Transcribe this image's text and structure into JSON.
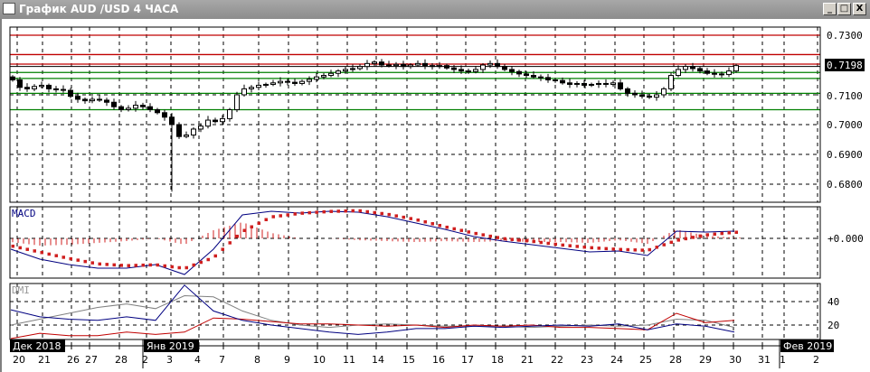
{
  "window": {
    "title": "График AUD /USD  4 ЧАСА",
    "controls": {
      "minimize": "_",
      "maximize": "□",
      "close": "X"
    }
  },
  "colors": {
    "support": "#008000",
    "resistance": "#c00000",
    "macd_line": "#000080",
    "signal_dots": "#d02020",
    "dmi_plus": "#000080",
    "dmi_minus": "#c00000",
    "adx": "#808080",
    "candle": "#000000"
  },
  "price_axis": {
    "labels": [
      "0.7300",
      "0.7100",
      "0.7000",
      "0.6900",
      "0.6800"
    ],
    "current_price": "0.7198"
  },
  "macd_panel": {
    "label": "MACD",
    "zero_label": "+0.000"
  },
  "dmi_panel": {
    "label": "DMI",
    "levels": [
      "40",
      "20"
    ]
  },
  "time_axis": {
    "months": [
      "Дек 2018",
      "Янв 2019",
      "Фев 2019"
    ],
    "days": [
      "20",
      "21",
      "26",
      "27",
      "28",
      "2",
      "3",
      "4",
      "7",
      "8",
      "9",
      "10",
      "11",
      "14",
      "15",
      "16",
      "17",
      "18",
      "21",
      "22",
      "23",
      "24",
      "25",
      "28",
      "29",
      "30",
      "31",
      "1",
      "2"
    ]
  },
  "chart_data": {
    "type": "candlestick",
    "symbol": "AUD/USD",
    "timeframe": "4 ЧАСА",
    "ylim": [
      0.677,
      0.733
    ],
    "horizontal_levels": {
      "resistance": [
        0.73,
        0.7235,
        0.7203
      ],
      "support": [
        0.7175,
        0.7155,
        0.7105,
        0.705
      ]
    },
    "closes": [
      0.715,
      0.7125,
      0.712,
      0.7128,
      0.7132,
      0.712,
      0.7118,
      0.7115,
      0.7095,
      0.7085,
      0.708,
      0.7085,
      0.7082,
      0.7075,
      0.706,
      0.705,
      0.7055,
      0.7065,
      0.706,
      0.705,
      0.704,
      0.7025,
      0.7,
      0.696,
      0.6965,
      0.6985,
      0.6995,
      0.7015,
      0.701,
      0.702,
      0.705,
      0.71,
      0.712,
      0.7125,
      0.7132,
      0.7135,
      0.714,
      0.7145,
      0.7142,
      0.7138,
      0.7145,
      0.7152,
      0.716,
      0.7165,
      0.7172,
      0.718,
      0.7185,
      0.7188,
      0.7195,
      0.7205,
      0.721,
      0.72,
      0.7198,
      0.7202,
      0.7195,
      0.72,
      0.7205,
      0.7198,
      0.7195,
      0.7198,
      0.719,
      0.7185,
      0.718,
      0.7178,
      0.7185,
      0.72,
      0.7205,
      0.7195,
      0.7185,
      0.7178,
      0.717,
      0.7165,
      0.716,
      0.7158,
      0.715,
      0.7148,
      0.714,
      0.7135,
      0.7138,
      0.7132,
      0.7135,
      0.7138,
      0.7135,
      0.714,
      0.712,
      0.7105,
      0.71,
      0.7095,
      0.7092,
      0.71,
      0.712,
      0.7165,
      0.7185,
      0.7195,
      0.7188,
      0.718,
      0.7172,
      0.717,
      0.7168,
      0.718,
      0.7198
    ],
    "spike_low": 0.6775,
    "macd": [
      -0.0012,
      -0.0023,
      -0.0029,
      -0.0033,
      -0.0033,
      -0.0029,
      -0.004,
      -0.0012,
      0.0026,
      0.003,
      0.0028,
      0.003,
      0.0029,
      0.0024,
      0.0017,
      0.001,
      0.0002,
      -0.0003,
      -0.0007,
      -0.0011,
      -0.0015,
      -0.0014,
      -0.0019,
      0.0008,
      0.0007,
      0.0008
    ],
    "macd_signal": [
      -0.0008,
      -0.0015,
      -0.0022,
      -0.0028,
      -0.003,
      -0.0029,
      -0.0033,
      -0.0021,
      0.0008,
      0.0024,
      0.0028,
      0.003,
      0.0031,
      0.0027,
      0.0021,
      0.0013,
      0.0006,
      0.0,
      -0.0003,
      -0.0007,
      -0.001,
      -0.0012,
      -0.0013,
      -0.0002,
      0.0004,
      0.0007
    ],
    "dmi_plus": [
      33,
      27,
      25,
      24,
      27,
      24,
      54,
      32,
      24,
      20,
      17,
      14,
      12,
      14,
      17,
      17,
      19,
      18,
      19,
      20,
      19,
      21,
      16,
      21,
      19,
      14
    ],
    "dmi_minus": [
      6,
      13,
      11,
      11,
      14,
      12,
      14,
      26,
      25,
      23,
      21,
      21,
      20,
      19,
      20,
      18,
      20,
      19,
      20,
      18,
      18,
      17,
      16,
      30,
      22,
      24
    ],
    "adx": [
      20,
      25,
      30,
      35,
      38,
      34,
      45,
      44,
      32,
      24,
      20,
      18,
      20,
      21,
      20,
      19,
      19,
      19,
      18,
      19,
      20,
      19,
      20,
      25,
      24,
      18
    ]
  }
}
